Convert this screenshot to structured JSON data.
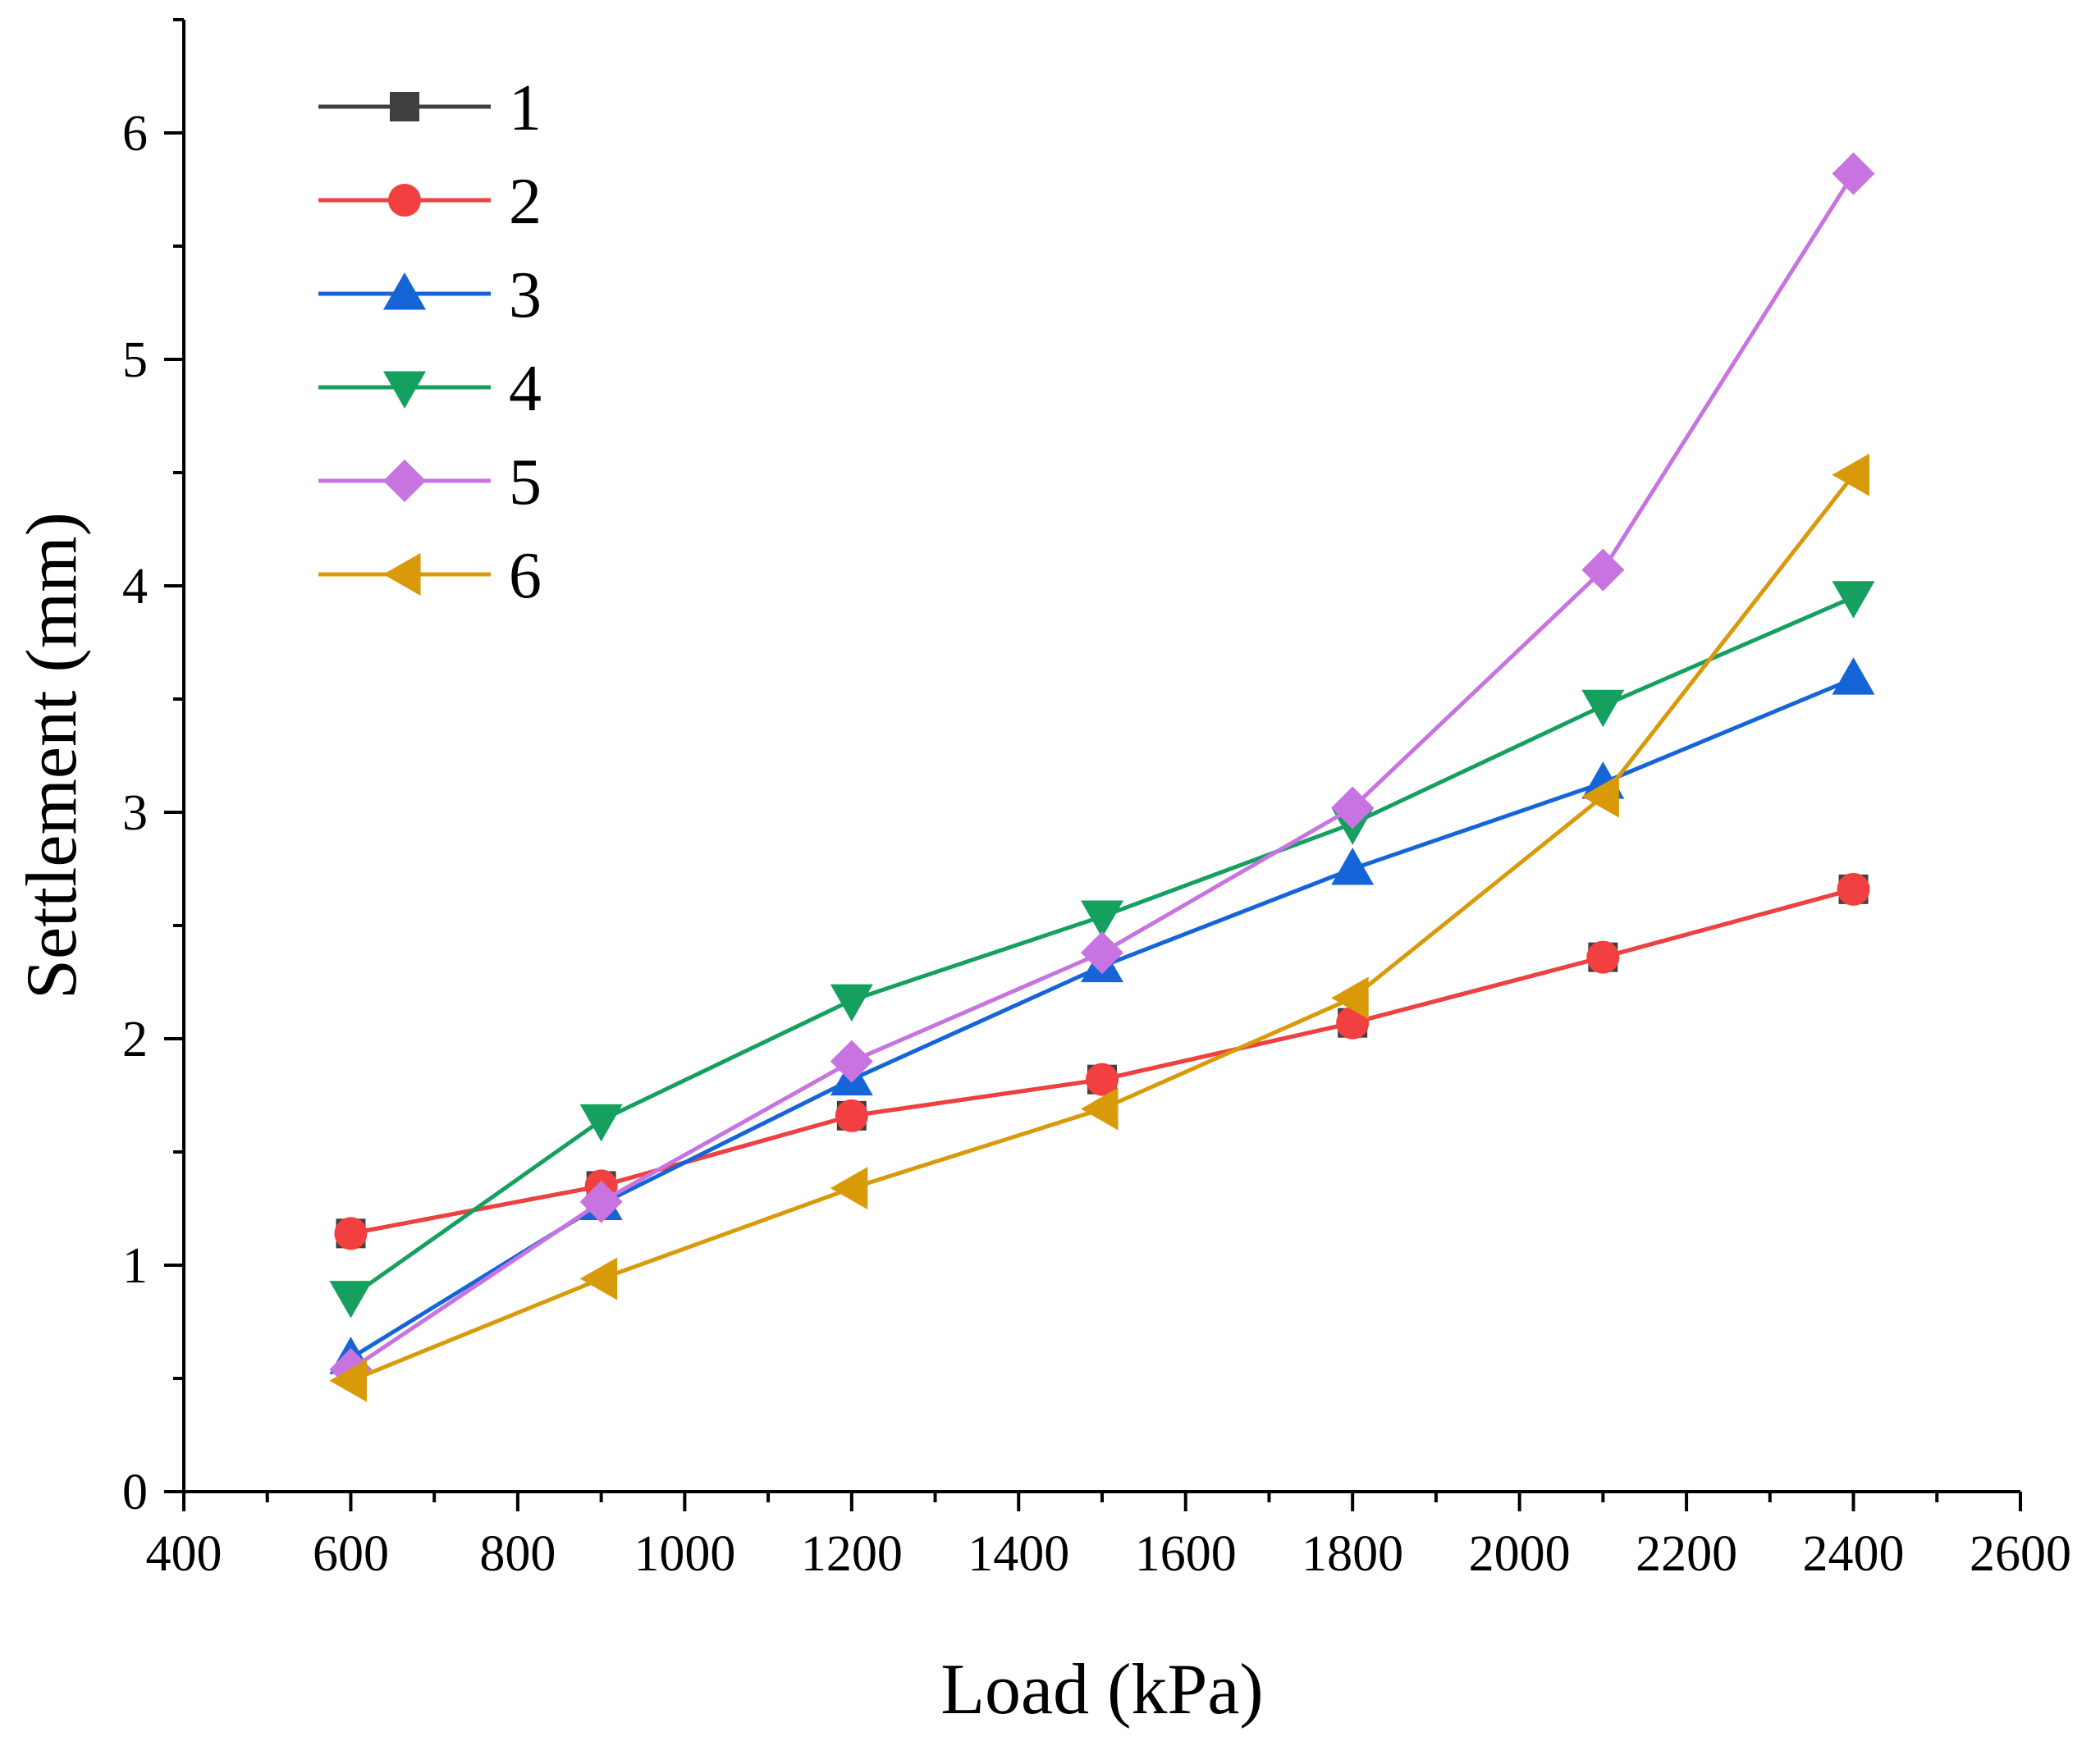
{
  "chart_data": {
    "type": "line",
    "title": "",
    "xlabel": "Load (kPa)",
    "ylabel": "Settlement (mm)",
    "xlim": [
      400,
      2600
    ],
    "ylim": [
      0,
      6.5
    ],
    "x_ticks": [
      400,
      600,
      800,
      1000,
      1200,
      1400,
      1600,
      1800,
      2000,
      2200,
      2400,
      2600
    ],
    "y_ticks": [
      0,
      1,
      2,
      3,
      4,
      5,
      6
    ],
    "grid": false,
    "legend_position": "top-left",
    "x": [
      600,
      900,
      1200,
      1500,
      1800,
      2100,
      2400
    ],
    "series": [
      {
        "name": "1",
        "color": "#404040",
        "marker": "square",
        "values": [
          1.14,
          1.35,
          1.66,
          1.82,
          2.07,
          2.36,
          2.66
        ]
      },
      {
        "name": "2",
        "color": "#f23f3f",
        "marker": "circle",
        "values": [
          1.14,
          1.35,
          1.66,
          1.82,
          2.07,
          2.36,
          2.66
        ]
      },
      {
        "name": "3",
        "color": "#1565d8",
        "marker": "triangle-up",
        "values": [
          0.59,
          1.27,
          1.82,
          2.32,
          2.75,
          3.13,
          3.59
        ]
      },
      {
        "name": "4",
        "color": "#15a060",
        "marker": "triangle-down",
        "values": [
          0.86,
          1.64,
          2.17,
          2.54,
          2.95,
          3.47,
          3.95
        ]
      },
      {
        "name": "5",
        "color": "#c774e0",
        "marker": "diamond",
        "values": [
          0.54,
          1.28,
          1.9,
          2.38,
          3.02,
          4.07,
          5.82
        ]
      },
      {
        "name": "6",
        "color": "#d99a0a",
        "marker": "triangle-left",
        "values": [
          0.49,
          0.94,
          1.34,
          1.69,
          2.18,
          3.07,
          4.49
        ]
      }
    ]
  }
}
